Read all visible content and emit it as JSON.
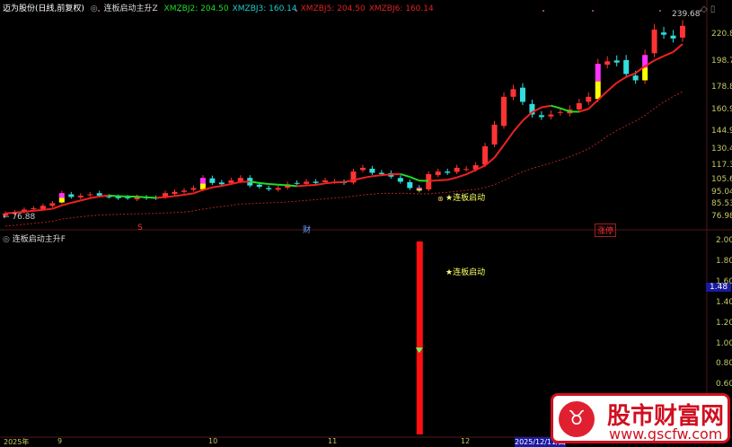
{
  "header": {
    "title": "迈为股份(日线,前复权)",
    "indicator": "连板启动主升Z",
    "items": [
      {
        "label": "XMZBJ2: 204.50",
        "color": "#22dd22"
      },
      {
        "label": "XMZBJ3: 160.14",
        "color": "#22cccc"
      },
      {
        "label": "XMZBJ5: 204.50",
        "color": "#dd2222"
      },
      {
        "label": "XMZBJ6: 160.14",
        "color": "#dd2222"
      }
    ]
  },
  "main": {
    "price_axis": [
      "220.8",
      "198.7",
      "178.8",
      "160.9",
      "144.9",
      "130.4",
      "117.3",
      "105.6",
      "95.04",
      "85.53",
      "76.98"
    ],
    "high_label": "239.68",
    "low_label": "← 76.88",
    "signal_label": "★连板启动",
    "markers": [
      {
        "text": "S",
        "color": "#ff3030"
      },
      {
        "text": "财",
        "color": "#6aa0ff"
      },
      {
        "text": "涨停",
        "color": "#ff3030"
      }
    ]
  },
  "sub": {
    "indicator": "连板启动主升F",
    "signal_label": "★连板启动",
    "axis": [
      "2.00",
      "1.80",
      "1.60",
      "1.40",
      "1.20",
      "1.00",
      "0.80",
      "0.60"
    ],
    "current": "1.48",
    "bar_value": 2.0,
    "diamond_value": 0.95
  },
  "date_axis": [
    "2025年",
    "9",
    "10",
    "11",
    "12",
    "2025/12/11/四"
  ],
  "watermark": {
    "name": "股市财富网",
    "url": "www.gscfw.com"
  },
  "chart_data": {
    "type": "candlestick",
    "up_color": "#ff3333",
    "down_color": "#33dddd",
    "closes": [
      80,
      81,
      83,
      84,
      86,
      88,
      96,
      93,
      94,
      95,
      94,
      93,
      92,
      92,
      93,
      92,
      92,
      96,
      97,
      98,
      100,
      108,
      104,
      103,
      106,
      108,
      102,
      101,
      99,
      100,
      103,
      104,
      105,
      104,
      106,
      105,
      104,
      113,
      116,
      112,
      111,
      109,
      105,
      100,
      98,
      111,
      113,
      112,
      116,
      115,
      118,
      133,
      150,
      172,
      178,
      168,
      158,
      156,
      158,
      160,
      162,
      167,
      172,
      198,
      200,
      199,
      190,
      185,
      205,
      225,
      221,
      218,
      228
    ],
    "highlight_index": [
      6,
      21,
      44,
      63,
      68
    ]
  }
}
